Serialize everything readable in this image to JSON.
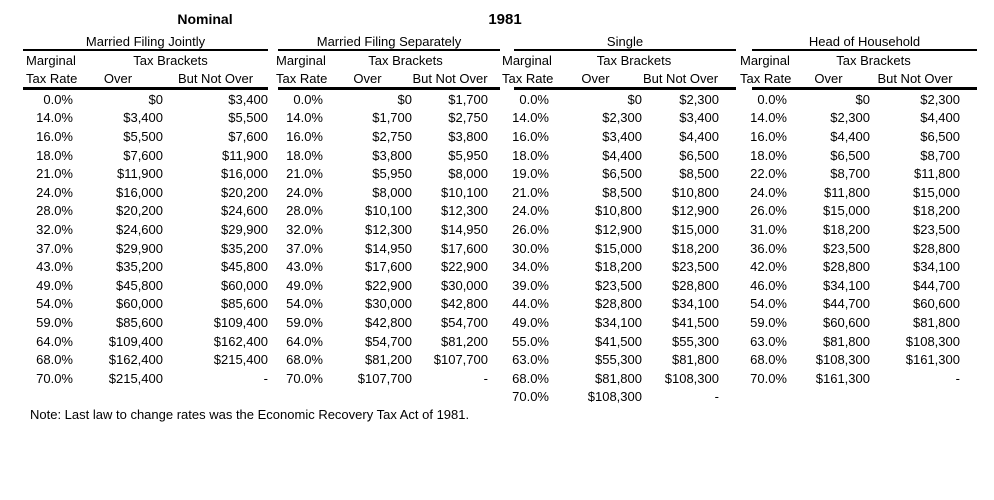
{
  "header": {
    "scale_label": "Nominal",
    "year_label": "1981"
  },
  "column_headers": {
    "marginal": "Marginal",
    "tax_rate": "Tax Rate",
    "tax_brackets": "Tax Brackets",
    "over": "Over",
    "but_not_over": "But Not Over"
  },
  "sections": [
    {
      "title": "Married Filing Jointly",
      "rows": [
        {
          "rate": "0.0%",
          "over": "$0",
          "but_not_over": "$3,400"
        },
        {
          "rate": "14.0%",
          "over": "$3,400",
          "but_not_over": "$5,500"
        },
        {
          "rate": "16.0%",
          "over": "$5,500",
          "but_not_over": "$7,600"
        },
        {
          "rate": "18.0%",
          "over": "$7,600",
          "but_not_over": "$11,900"
        },
        {
          "rate": "21.0%",
          "over": "$11,900",
          "but_not_over": "$16,000"
        },
        {
          "rate": "24.0%",
          "over": "$16,000",
          "but_not_over": "$20,200"
        },
        {
          "rate": "28.0%",
          "over": "$20,200",
          "but_not_over": "$24,600"
        },
        {
          "rate": "32.0%",
          "over": "$24,600",
          "but_not_over": "$29,900"
        },
        {
          "rate": "37.0%",
          "over": "$29,900",
          "but_not_over": "$35,200"
        },
        {
          "rate": "43.0%",
          "over": "$35,200",
          "but_not_over": "$45,800"
        },
        {
          "rate": "49.0%",
          "over": "$45,800",
          "but_not_over": "$60,000"
        },
        {
          "rate": "54.0%",
          "over": "$60,000",
          "but_not_over": "$85,600"
        },
        {
          "rate": "59.0%",
          "over": "$85,600",
          "but_not_over": "$109,400"
        },
        {
          "rate": "64.0%",
          "over": "$109,400",
          "but_not_over": "$162,400"
        },
        {
          "rate": "68.0%",
          "over": "$162,400",
          "but_not_over": "$215,400"
        },
        {
          "rate": "70.0%",
          "over": "$215,400",
          "but_not_over": "-"
        }
      ]
    },
    {
      "title": "Married Filing Separately",
      "rows": [
        {
          "rate": "0.0%",
          "over": "$0",
          "but_not_over": "$1,700"
        },
        {
          "rate": "14.0%",
          "over": "$1,700",
          "but_not_over": "$2,750"
        },
        {
          "rate": "16.0%",
          "over": "$2,750",
          "but_not_over": "$3,800"
        },
        {
          "rate": "18.0%",
          "over": "$3,800",
          "but_not_over": "$5,950"
        },
        {
          "rate": "21.0%",
          "over": "$5,950",
          "but_not_over": "$8,000"
        },
        {
          "rate": "24.0%",
          "over": "$8,000",
          "but_not_over": "$10,100"
        },
        {
          "rate": "28.0%",
          "over": "$10,100",
          "but_not_over": "$12,300"
        },
        {
          "rate": "32.0%",
          "over": "$12,300",
          "but_not_over": "$14,950"
        },
        {
          "rate": "37.0%",
          "over": "$14,950",
          "but_not_over": "$17,600"
        },
        {
          "rate": "43.0%",
          "over": "$17,600",
          "but_not_over": "$22,900"
        },
        {
          "rate": "49.0%",
          "over": "$22,900",
          "but_not_over": "$30,000"
        },
        {
          "rate": "54.0%",
          "over": "$30,000",
          "but_not_over": "$42,800"
        },
        {
          "rate": "59.0%",
          "over": "$42,800",
          "but_not_over": "$54,700"
        },
        {
          "rate": "64.0%",
          "over": "$54,700",
          "but_not_over": "$81,200"
        },
        {
          "rate": "68.0%",
          "over": "$81,200",
          "but_not_over": "$107,700"
        },
        {
          "rate": "70.0%",
          "over": "$107,700",
          "but_not_over": "-"
        }
      ]
    },
    {
      "title": "Single",
      "rows": [
        {
          "rate": "0.0%",
          "over": "$0",
          "but_not_over": "$2,300"
        },
        {
          "rate": "14.0%",
          "over": "$2,300",
          "but_not_over": "$3,400"
        },
        {
          "rate": "16.0%",
          "over": "$3,400",
          "but_not_over": "$4,400"
        },
        {
          "rate": "18.0%",
          "over": "$4,400",
          "but_not_over": "$6,500"
        },
        {
          "rate": "19.0%",
          "over": "$6,500",
          "but_not_over": "$8,500"
        },
        {
          "rate": "21.0%",
          "over": "$8,500",
          "but_not_over": "$10,800"
        },
        {
          "rate": "24.0%",
          "over": "$10,800",
          "but_not_over": "$12,900"
        },
        {
          "rate": "26.0%",
          "over": "$12,900",
          "but_not_over": "$15,000"
        },
        {
          "rate": "30.0%",
          "over": "$15,000",
          "but_not_over": "$18,200"
        },
        {
          "rate": "34.0%",
          "over": "$18,200",
          "but_not_over": "$23,500"
        },
        {
          "rate": "39.0%",
          "over": "$23,500",
          "but_not_over": "$28,800"
        },
        {
          "rate": "44.0%",
          "over": "$28,800",
          "but_not_over": "$34,100"
        },
        {
          "rate": "49.0%",
          "over": "$34,100",
          "but_not_over": "$41,500"
        },
        {
          "rate": "55.0%",
          "over": "$41,500",
          "but_not_over": "$55,300"
        },
        {
          "rate": "63.0%",
          "over": "$55,300",
          "but_not_over": "$81,800"
        },
        {
          "rate": "68.0%",
          "over": "$81,800",
          "but_not_over": "$108,300"
        },
        {
          "rate": "70.0%",
          "over": "$108,300",
          "but_not_over": "-"
        }
      ]
    },
    {
      "title": "Head of Household",
      "rows": [
        {
          "rate": "0.0%",
          "over": "$0",
          "but_not_over": "$2,300"
        },
        {
          "rate": "14.0%",
          "over": "$2,300",
          "but_not_over": "$4,400"
        },
        {
          "rate": "16.0%",
          "over": "$4,400",
          "but_not_over": "$6,500"
        },
        {
          "rate": "18.0%",
          "over": "$6,500",
          "but_not_over": "$8,700"
        },
        {
          "rate": "22.0%",
          "over": "$8,700",
          "but_not_over": "$11,800"
        },
        {
          "rate": "24.0%",
          "over": "$11,800",
          "but_not_over": "$15,000"
        },
        {
          "rate": "26.0%",
          "over": "$15,000",
          "but_not_over": "$18,200"
        },
        {
          "rate": "31.0%",
          "over": "$18,200",
          "but_not_over": "$23,500"
        },
        {
          "rate": "36.0%",
          "over": "$23,500",
          "but_not_over": "$28,800"
        },
        {
          "rate": "42.0%",
          "over": "$28,800",
          "but_not_over": "$34,100"
        },
        {
          "rate": "46.0%",
          "over": "$34,100",
          "but_not_over": "$44,700"
        },
        {
          "rate": "54.0%",
          "over": "$44,700",
          "but_not_over": "$60,600"
        },
        {
          "rate": "59.0%",
          "over": "$60,600",
          "but_not_over": "$81,800"
        },
        {
          "rate": "63.0%",
          "over": "$81,800",
          "but_not_over": "$108,300"
        },
        {
          "rate": "68.0%",
          "over": "$108,300",
          "but_not_over": "$161,300"
        },
        {
          "rate": "70.0%",
          "over": "$161,300",
          "but_not_over": "-"
        }
      ]
    }
  ],
  "note": "Note: Last law to change rates was the Economic Recovery Tax Act of 1981."
}
